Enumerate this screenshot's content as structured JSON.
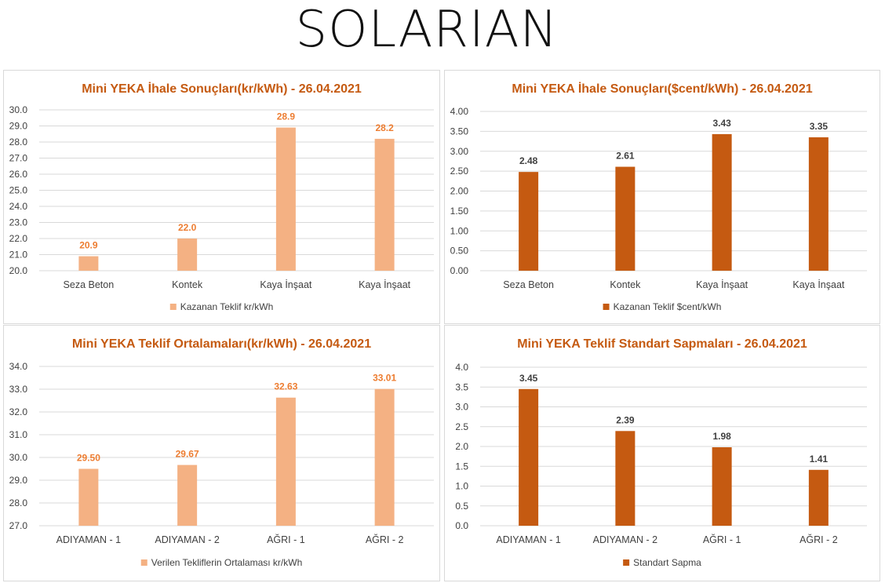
{
  "logo": "SOLARIAN",
  "chart_data": [
    {
      "type": "bar",
      "title": "Mini YEKA İhale Sonuçları(kr/kWh) - 26.04.2021",
      "categories": [
        "Seza Beton",
        "Kontek",
        "Kaya İnşaat",
        "Kaya İnşaat"
      ],
      "series": [
        {
          "name": "Kazanan Teklif kr/kWh",
          "values": [
            20.9,
            22.0,
            28.9,
            28.2
          ]
        }
      ],
      "ylim": [
        20.0,
        30.0
      ],
      "yticks": [
        20.0,
        21.0,
        22.0,
        23.0,
        24.0,
        25.0,
        26.0,
        27.0,
        28.0,
        29.0,
        30.0
      ],
      "decimals": 1,
      "color": "#f4b183",
      "label_color": "#ed7d31",
      "legend": "bottom"
    },
    {
      "type": "bar",
      "title": "Mini YEKA İhale Sonuçları($cent/kWh) - 26.04.2021",
      "categories": [
        "Seza Beton",
        "Kontek",
        "Kaya İnşaat",
        "Kaya İnşaat"
      ],
      "series": [
        {
          "name": "Kazanan Teklif $cent/kWh",
          "values": [
            2.48,
            2.61,
            3.43,
            3.35
          ]
        }
      ],
      "ylim": [
        0.0,
        4.0
      ],
      "yticks": [
        0.0,
        0.5,
        1.0,
        1.5,
        2.0,
        2.5,
        3.0,
        3.5,
        4.0
      ],
      "decimals": 2,
      "color": "#c55a11",
      "label_color": "#404040",
      "legend": "bottom"
    },
    {
      "type": "bar",
      "title": "Mini YEKA Teklif Ortalamaları(kr/kWh) - 26.04.2021",
      "categories": [
        "ADIYAMAN - 1",
        "ADIYAMAN - 2",
        "AĞRI - 1",
        "AĞRI - 2"
      ],
      "series": [
        {
          "name": "Verilen Tekliflerin Ortalaması kr/kWh",
          "values": [
            29.5,
            29.67,
            32.63,
            33.01
          ]
        }
      ],
      "ylim": [
        27.0,
        34.0
      ],
      "yticks": [
        27.0,
        28.0,
        29.0,
        30.0,
        31.0,
        32.0,
        33.0,
        34.0
      ],
      "decimals": 1,
      "label_decimals": 2,
      "color": "#f4b183",
      "label_color": "#ed7d31",
      "legend": "bottom"
    },
    {
      "type": "bar",
      "title": "Mini YEKA Teklif Standart Sapmaları - 26.04.2021",
      "categories": [
        "ADIYAMAN - 1",
        "ADIYAMAN - 2",
        "AĞRI - 1",
        "AĞRI - 2"
      ],
      "series": [
        {
          "name": "Standart Sapma",
          "values": [
            3.45,
            2.39,
            1.98,
            1.41
          ]
        }
      ],
      "ylim": [
        0.0,
        4.0
      ],
      "yticks": [
        0.0,
        0.5,
        1.0,
        1.5,
        2.0,
        2.5,
        3.0,
        3.5,
        4.0
      ],
      "decimals": 1,
      "label_decimals": 2,
      "color": "#c55a11",
      "label_color": "#404040",
      "legend": "bottom"
    }
  ]
}
